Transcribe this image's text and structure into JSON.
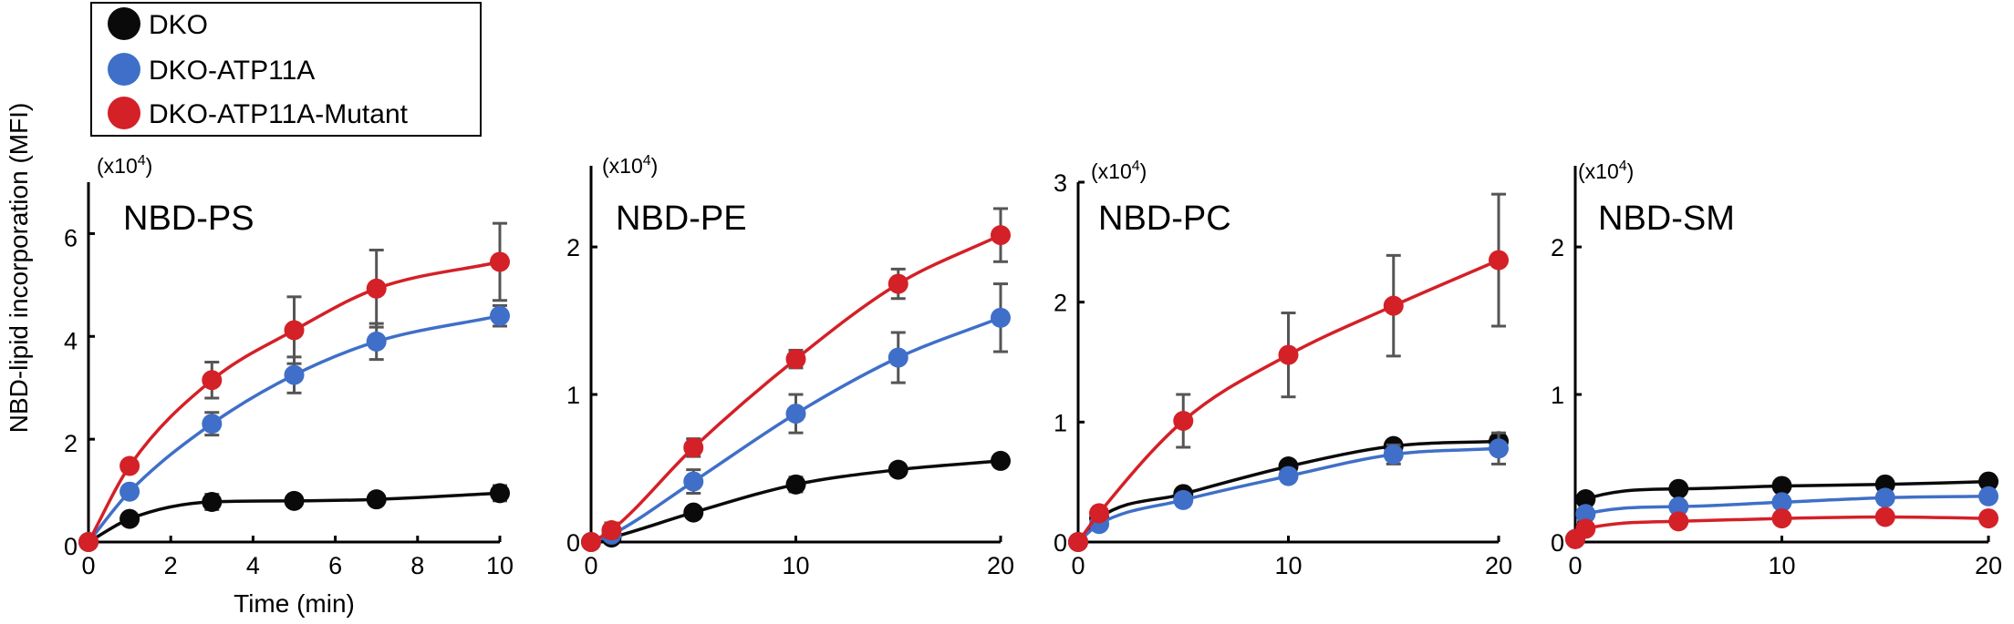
{
  "legend": [
    {
      "name": "DKO",
      "color": "#0a0a0a"
    },
    {
      "name": "DKO-ATP11A",
      "color": "#3f6fc8"
    },
    {
      "name": "DKO-ATP11A-Mutant",
      "color": "#d42027"
    }
  ],
  "y_axis_title": "NBD-lipid incorporation (MFI)",
  "chart_data": [
    {
      "type": "line",
      "title": "NBD-PS",
      "unit": "(x10",
      "unit_exp": "4",
      "unit_close": ")",
      "xlabel": "Time (min)",
      "ylabel": "NBD-lipid incorporation (MFI)",
      "xlim": [
        0,
        10
      ],
      "ylim": [
        0,
        7
      ],
      "xticks": [
        0,
        2,
        4,
        6,
        8,
        10
      ],
      "yticks": [
        0,
        2,
        4,
        6
      ],
      "x": [
        0,
        1,
        3,
        5,
        7,
        10
      ],
      "series": [
        {
          "name": "DKO",
          "color": "#0a0a0a",
          "values": [
            0,
            0.45,
            0.78,
            0.8,
            0.83,
            0.95
          ],
          "errors": [
            0,
            0,
            0.15,
            0.05,
            0.05,
            0.15
          ]
        },
        {
          "name": "DKO-ATP11A",
          "color": "#3f6fc8",
          "values": [
            0,
            0.98,
            2.3,
            3.25,
            3.9,
            4.4
          ],
          "errors": [
            0,
            0,
            0.22,
            0.35,
            0.35,
            0.2
          ]
        },
        {
          "name": "DKO-ATP11A-Mutant",
          "color": "#d42027",
          "values": [
            0,
            1.48,
            3.15,
            4.12,
            4.93,
            5.45
          ],
          "errors": [
            0,
            0,
            0.35,
            0.65,
            0.75,
            0.75
          ]
        }
      ]
    },
    {
      "type": "line",
      "title": "NBD-PE",
      "unit": "(x10",
      "unit_exp": "4",
      "unit_close": ")",
      "xlabel": "",
      "ylabel": "",
      "xlim": [
        0,
        20
      ],
      "ylim": [
        0,
        2.55
      ],
      "xticks": [
        0,
        10,
        20
      ],
      "yticks": [
        0,
        1,
        2
      ],
      "x": [
        0,
        1,
        5,
        10,
        15,
        20
      ],
      "series": [
        {
          "name": "DKO",
          "color": "#0a0a0a",
          "values": [
            0,
            0.03,
            0.2,
            0.39,
            0.49,
            0.55
          ],
          "errors": [
            0,
            0,
            0,
            0.05,
            0.04,
            0.03
          ]
        },
        {
          "name": "DKO-ATP11A",
          "color": "#3f6fc8",
          "values": [
            0,
            0.05,
            0.41,
            0.87,
            1.25,
            1.52
          ],
          "errors": [
            0,
            0,
            0.08,
            0.13,
            0.17,
            0.23
          ]
        },
        {
          "name": "DKO-ATP11A-Mutant",
          "color": "#d42027",
          "values": [
            0,
            0.08,
            0.64,
            1.24,
            1.75,
            2.08
          ],
          "errors": [
            0,
            0.05,
            0.06,
            0.06,
            0.1,
            0.18
          ]
        }
      ]
    },
    {
      "type": "line",
      "title": "NBD-PC",
      "unit": "(x10",
      "unit_exp": "4",
      "unit_close": ")",
      "xlabel": "",
      "ylabel": "",
      "xlim": [
        0,
        20
      ],
      "ylim": [
        0,
        3
      ],
      "xticks": [
        0,
        10,
        20
      ],
      "yticks": [
        0,
        1,
        2,
        3
      ],
      "x": [
        0,
        1,
        5,
        10,
        15,
        20
      ],
      "series": [
        {
          "name": "DKO",
          "color": "#0a0a0a",
          "values": [
            0,
            0.2,
            0.4,
            0.63,
            0.8,
            0.84
          ],
          "errors": [
            0,
            0,
            0,
            0,
            0,
            0.06
          ]
        },
        {
          "name": "DKO-ATP11A",
          "color": "#3f6fc8",
          "values": [
            0,
            0.15,
            0.35,
            0.55,
            0.73,
            0.78
          ],
          "errors": [
            0,
            0,
            0,
            0,
            0.08,
            0.13
          ]
        },
        {
          "name": "DKO-ATP11A-Mutant",
          "color": "#d42027",
          "values": [
            0,
            0.24,
            1.01,
            1.56,
            1.97,
            2.35
          ],
          "errors": [
            0,
            0,
            0.22,
            0.35,
            0.42,
            0.55
          ]
        }
      ]
    },
    {
      "type": "line",
      "title": "NBD-SM",
      "unit": "(x10",
      "unit_exp": "4",
      "unit_close": ")",
      "xlabel": "",
      "ylabel": "",
      "xlim": [
        0,
        20
      ],
      "ylim": [
        0,
        2.55
      ],
      "xticks": [
        0,
        10,
        20
      ],
      "yticks": [
        0,
        1,
        2
      ],
      "x": [
        0,
        0.5,
        5,
        10,
        15,
        20
      ],
      "series": [
        {
          "name": "DKO",
          "color": "#0a0a0a",
          "values": [
            0.02,
            0.29,
            0.36,
            0.38,
            0.39,
            0.41
          ],
          "errors": [
            0,
            0,
            0,
            0,
            0,
            0
          ]
        },
        {
          "name": "DKO-ATP11A",
          "color": "#3f6fc8",
          "values": [
            0.02,
            0.19,
            0.24,
            0.27,
            0.3,
            0.31
          ],
          "errors": [
            0,
            0,
            0,
            0,
            0,
            0
          ]
        },
        {
          "name": "DKO-ATP11A-Mutant",
          "color": "#d42027",
          "values": [
            0.02,
            0.09,
            0.14,
            0.16,
            0.17,
            0.16
          ],
          "errors": [
            0,
            0,
            0,
            0,
            0,
            0
          ]
        }
      ]
    }
  ]
}
